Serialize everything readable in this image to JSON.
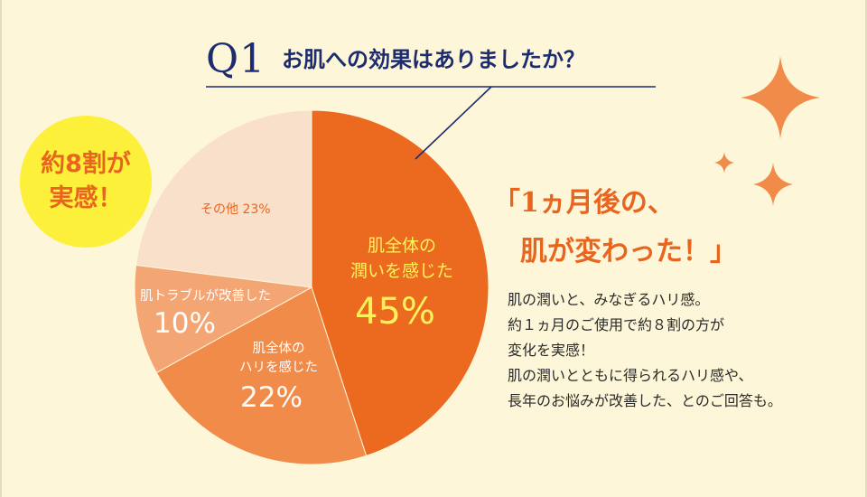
{
  "question": {
    "mark": "Q1",
    "text": "お肌への効果はありましたか？"
  },
  "badge": {
    "line1": "約8割が",
    "line2": "実感！"
  },
  "headline": {
    "line1": "「1ヵ月後の、",
    "line2": "肌が変わった！」"
  },
  "body_lines": [
    "肌の潤いと、みなぎるハリ感。",
    "約１ヵ月のご使用で約８割の方が",
    "変化を実感！",
    "肌の潤いとともに得られるハリ感や、",
    "長年のお悩みが改善した、とのご回答も。"
  ],
  "chart_data": {
    "type": "pie",
    "title": "",
    "slices": [
      {
        "label": "肌全体の潤いを感じた",
        "label_lines": [
          "肌全体の",
          "潤いを感じた"
        ],
        "value": 45,
        "display": "45%",
        "color": "#eb6a1f",
        "label_color": "#fff25a"
      },
      {
        "label": "肌全体のハリを感じた",
        "label_lines": [
          "肌全体の",
          "ハリを感じた"
        ],
        "value": 22,
        "display": "22%",
        "color": "#f08b4a",
        "label_color": "#ffffff"
      },
      {
        "label": "肌トラブルが改善した",
        "label_lines": [
          "肌トラブルが改善した"
        ],
        "value": 10,
        "display": "10%",
        "color": "#f4a574",
        "label_color": "#ffffff"
      },
      {
        "label": "その他",
        "label_lines": [
          "その他"
        ],
        "value": 23,
        "display": "23%",
        "color": "#f9e0cb",
        "label_color": "#e8651f"
      }
    ],
    "start": "12 o'clock",
    "direction": "clockwise"
  },
  "colors": {
    "background": "#fef6d8",
    "accent": "#e8651f",
    "navy": "#1c2c6e",
    "badge": "#fcf03a"
  }
}
